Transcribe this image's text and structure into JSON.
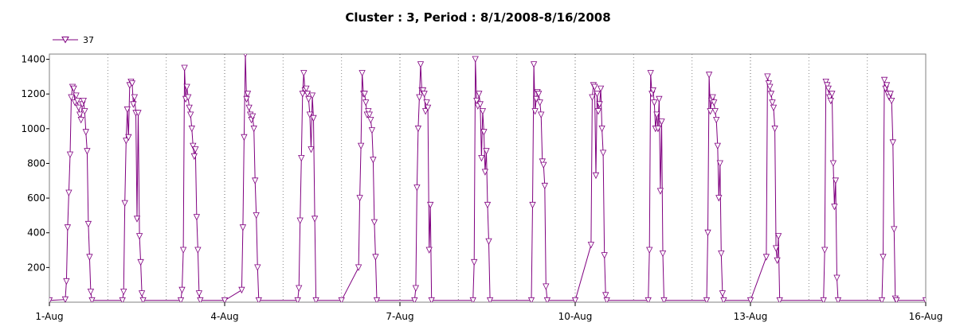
{
  "chart_data": {
    "type": "line",
    "title": "Cluster : 3, Period : 8/1/2008-8/16/2008",
    "xlabel": "",
    "ylabel": "",
    "x_range": [
      "2008-08-01",
      "2008-08-16"
    ],
    "ylim": [
      0,
      1430
    ],
    "x_ticks": [
      {
        "date": "2008-08-01",
        "label": "1-Aug"
      },
      {
        "date": "2008-08-04",
        "label": "4-Aug"
      },
      {
        "date": "2008-08-07",
        "label": "7-Aug"
      },
      {
        "date": "2008-08-10",
        "label": "10-Aug"
      },
      {
        "date": "2008-08-13",
        "label": "13-Aug"
      },
      {
        "date": "2008-08-16",
        "label": "16-Aug"
      }
    ],
    "minor_x_ticks": [
      "2008-08-02",
      "2008-08-03",
      "2008-08-05",
      "2008-08-06",
      "2008-08-08",
      "2008-08-09",
      "2008-08-11",
      "2008-08-12",
      "2008-08-14",
      "2008-08-15"
    ],
    "y_ticks": [
      200,
      400,
      600,
      800,
      1000,
      1200,
      1400
    ],
    "grid": "vertical dotted at day boundaries",
    "legend": {
      "placement": "top-left"
    },
    "series": [
      {
        "name": "37",
        "color": "#800080",
        "marker": "down-triangle",
        "points": [
          [
            "2008-08-01 00:00",
            10
          ],
          [
            "2008-08-01 06:30",
            15
          ],
          [
            "2008-08-01 07:00",
            120
          ],
          [
            "2008-08-01 07:30",
            430
          ],
          [
            "2008-08-01 08:00",
            630
          ],
          [
            "2008-08-01 08:30",
            850
          ],
          [
            "2008-08-01 09:00",
            1180
          ],
          [
            "2008-08-01 09:30",
            1240
          ],
          [
            "2008-08-01 10:00",
            1230
          ],
          [
            "2008-08-01 10:30",
            1150
          ],
          [
            "2008-08-01 11:00",
            1190
          ],
          [
            "2008-08-01 11:30",
            1160
          ],
          [
            "2008-08-01 12:00",
            1120
          ],
          [
            "2008-08-01 12:30",
            1080
          ],
          [
            "2008-08-01 13:00",
            1050
          ],
          [
            "2008-08-01 13:30",
            1140
          ],
          [
            "2008-08-01 14:00",
            1160
          ],
          [
            "2008-08-01 14:30",
            1100
          ],
          [
            "2008-08-01 15:00",
            980
          ],
          [
            "2008-08-01 15:30",
            870
          ],
          [
            "2008-08-01 16:00",
            450
          ],
          [
            "2008-08-01 16:30",
            260
          ],
          [
            "2008-08-01 17:00",
            60
          ],
          [
            "2008-08-01 17:30",
            10
          ],
          [
            "2008-08-02 06:00",
            10
          ],
          [
            "2008-08-02 06:30",
            60
          ],
          [
            "2008-08-02 07:00",
            570
          ],
          [
            "2008-08-02 07:30",
            930
          ],
          [
            "2008-08-02 08:00",
            1110
          ],
          [
            "2008-08-02 08:30",
            950
          ],
          [
            "2008-08-02 09:00",
            1250
          ],
          [
            "2008-08-02 09:30",
            1270
          ],
          [
            "2008-08-02 10:00",
            1260
          ],
          [
            "2008-08-02 10:30",
            1140
          ],
          [
            "2008-08-02 11:00",
            1180
          ],
          [
            "2008-08-02 11:30",
            1090
          ],
          [
            "2008-08-02 12:00",
            480
          ],
          [
            "2008-08-02 12:30",
            1090
          ],
          [
            "2008-08-02 13:00",
            380
          ],
          [
            "2008-08-02 13:30",
            230
          ],
          [
            "2008-08-02 14:00",
            50
          ],
          [
            "2008-08-02 14:30",
            10
          ],
          [
            "2008-08-03 06:00",
            10
          ],
          [
            "2008-08-03 06:30",
            70
          ],
          [
            "2008-08-03 07:00",
            300
          ],
          [
            "2008-08-03 07:30",
            1350
          ],
          [
            "2008-08-03 08:00",
            1170
          ],
          [
            "2008-08-03 08:30",
            1240
          ],
          [
            "2008-08-03 09:00",
            1180
          ],
          [
            "2008-08-03 09:30",
            1120
          ],
          [
            "2008-08-03 10:00",
            1080
          ],
          [
            "2008-08-03 10:30",
            1000
          ],
          [
            "2008-08-03 11:00",
            900
          ],
          [
            "2008-08-03 11:30",
            840
          ],
          [
            "2008-08-03 12:00",
            880
          ],
          [
            "2008-08-03 12:30",
            490
          ],
          [
            "2008-08-03 13:00",
            300
          ],
          [
            "2008-08-03 13:30",
            50
          ],
          [
            "2008-08-03 14:00",
            10
          ],
          [
            "2008-08-04 00:00",
            10
          ],
          [
            "2008-08-04 07:00",
            70
          ],
          [
            "2008-08-04 07:30",
            430
          ],
          [
            "2008-08-04 08:00",
            950
          ],
          [
            "2008-08-04 08:30",
            1430
          ],
          [
            "2008-08-04 09:00",
            1170
          ],
          [
            "2008-08-04 09:30",
            1200
          ],
          [
            "2008-08-04 10:00",
            1120
          ],
          [
            "2008-08-04 10:30",
            1080
          ],
          [
            "2008-08-04 11:00",
            1050
          ],
          [
            "2008-08-04 11:30",
            1070
          ],
          [
            "2008-08-04 12:00",
            1000
          ],
          [
            "2008-08-04 12:30",
            700
          ],
          [
            "2008-08-04 13:00",
            500
          ],
          [
            "2008-08-04 13:30",
            200
          ],
          [
            "2008-08-04 14:00",
            10
          ],
          [
            "2008-08-05 06:00",
            10
          ],
          [
            "2008-08-05 06:30",
            80
          ],
          [
            "2008-08-05 07:00",
            470
          ],
          [
            "2008-08-05 07:30",
            830
          ],
          [
            "2008-08-05 08:00",
            1200
          ],
          [
            "2008-08-05 08:30",
            1320
          ],
          [
            "2008-08-05 09:00",
            1220
          ],
          [
            "2008-08-05 09:30",
            1230
          ],
          [
            "2008-08-05 10:00",
            1200
          ],
          [
            "2008-08-05 10:30",
            1170
          ],
          [
            "2008-08-05 11:00",
            1080
          ],
          [
            "2008-08-05 11:30",
            880
          ],
          [
            "2008-08-05 12:00",
            1190
          ],
          [
            "2008-08-05 12:30",
            1060
          ],
          [
            "2008-08-05 13:00",
            480
          ],
          [
            "2008-08-05 13:30",
            10
          ],
          [
            "2008-08-06 00:00",
            10
          ],
          [
            "2008-08-06 07:00",
            200
          ],
          [
            "2008-08-06 07:30",
            600
          ],
          [
            "2008-08-06 08:00",
            900
          ],
          [
            "2008-08-06 08:30",
            1320
          ],
          [
            "2008-08-06 09:00",
            1200
          ],
          [
            "2008-08-06 09:30",
            1200
          ],
          [
            "2008-08-06 10:00",
            1150
          ],
          [
            "2008-08-06 10:30",
            1080
          ],
          [
            "2008-08-06 11:00",
            1100
          ],
          [
            "2008-08-06 11:30",
            1080
          ],
          [
            "2008-08-06 12:00",
            1050
          ],
          [
            "2008-08-06 12:30",
            990
          ],
          [
            "2008-08-06 13:00",
            820
          ],
          [
            "2008-08-06 13:30",
            460
          ],
          [
            "2008-08-06 14:00",
            260
          ],
          [
            "2008-08-06 14:30",
            10
          ],
          [
            "2008-08-07 06:00",
            10
          ],
          [
            "2008-08-07 06:30",
            80
          ],
          [
            "2008-08-07 07:00",
            660
          ],
          [
            "2008-08-07 07:30",
            1000
          ],
          [
            "2008-08-07 08:00",
            1180
          ],
          [
            "2008-08-07 08:30",
            1370
          ],
          [
            "2008-08-07 09:00",
            1220
          ],
          [
            "2008-08-07 09:30",
            1220
          ],
          [
            "2008-08-07 10:00",
            1200
          ],
          [
            "2008-08-07 10:30",
            1100
          ],
          [
            "2008-08-07 11:00",
            1150
          ],
          [
            "2008-08-07 11:30",
            1120
          ],
          [
            "2008-08-07 12:00",
            300
          ],
          [
            "2008-08-07 12:30",
            560
          ],
          [
            "2008-08-07 13:00",
            10
          ],
          [
            "2008-08-08 06:00",
            10
          ],
          [
            "2008-08-08 06:30",
            230
          ],
          [
            "2008-08-08 07:00",
            1400
          ],
          [
            "2008-08-08 07:30",
            1160
          ],
          [
            "2008-08-08 08:00",
            1130
          ],
          [
            "2008-08-08 08:30",
            1200
          ],
          [
            "2008-08-08 09:00",
            1140
          ],
          [
            "2008-08-08 09:30",
            830
          ],
          [
            "2008-08-08 10:00",
            1100
          ],
          [
            "2008-08-08 10:30",
            980
          ],
          [
            "2008-08-08 11:00",
            750
          ],
          [
            "2008-08-08 11:30",
            870
          ],
          [
            "2008-08-08 12:00",
            560
          ],
          [
            "2008-08-08 12:30",
            350
          ],
          [
            "2008-08-08 13:00",
            10
          ],
          [
            "2008-08-09 06:00",
            10
          ],
          [
            "2008-08-09 06:30",
            560
          ],
          [
            "2008-08-09 07:00",
            1370
          ],
          [
            "2008-08-09 07:30",
            1100
          ],
          [
            "2008-08-09 08:00",
            1170
          ],
          [
            "2008-08-09 08:30",
            1210
          ],
          [
            "2008-08-09 09:00",
            1200
          ],
          [
            "2008-08-09 09:30",
            1150
          ],
          [
            "2008-08-09 10:00",
            1080
          ],
          [
            "2008-08-09 10:30",
            810
          ],
          [
            "2008-08-09 11:00",
            790
          ],
          [
            "2008-08-09 11:30",
            670
          ],
          [
            "2008-08-09 12:00",
            90
          ],
          [
            "2008-08-09 12:30",
            10
          ],
          [
            "2008-08-10 00:00",
            10
          ],
          [
            "2008-08-10 06:30",
            330
          ],
          [
            "2008-08-10 07:00",
            1180
          ],
          [
            "2008-08-10 07:30",
            1250
          ],
          [
            "2008-08-10 08:00",
            1240
          ],
          [
            "2008-08-10 08:30",
            730
          ],
          [
            "2008-08-10 09:00",
            1200
          ],
          [
            "2008-08-10 09:30",
            1100
          ],
          [
            "2008-08-10 10:00",
            1140
          ],
          [
            "2008-08-10 10:30",
            1230
          ],
          [
            "2008-08-10 11:00",
            1000
          ],
          [
            "2008-08-10 11:30",
            860
          ],
          [
            "2008-08-10 12:00",
            270
          ],
          [
            "2008-08-10 12:30",
            40
          ],
          [
            "2008-08-10 13:00",
            10
          ],
          [
            "2008-08-11 06:00",
            10
          ],
          [
            "2008-08-11 06:30",
            300
          ],
          [
            "2008-08-11 07:00",
            1320
          ],
          [
            "2008-08-11 07:30",
            1200
          ],
          [
            "2008-08-11 08:00",
            1220
          ],
          [
            "2008-08-11 08:30",
            1150
          ],
          [
            "2008-08-11 09:00",
            1000
          ],
          [
            "2008-08-11 09:30",
            1080
          ],
          [
            "2008-08-11 10:00",
            1000
          ],
          [
            "2008-08-11 10:30",
            1170
          ],
          [
            "2008-08-11 11:00",
            640
          ],
          [
            "2008-08-11 11:30",
            1040
          ],
          [
            "2008-08-11 12:00",
            280
          ],
          [
            "2008-08-11 12:30",
            10
          ],
          [
            "2008-08-12 06:00",
            10
          ],
          [
            "2008-08-12 06:30",
            400
          ],
          [
            "2008-08-12 07:00",
            1310
          ],
          [
            "2008-08-12 07:30",
            1100
          ],
          [
            "2008-08-12 08:00",
            1160
          ],
          [
            "2008-08-12 08:30",
            1180
          ],
          [
            "2008-08-12 09:00",
            1150
          ],
          [
            "2008-08-12 09:30",
            1100
          ],
          [
            "2008-08-12 10:00",
            1050
          ],
          [
            "2008-08-12 10:30",
            900
          ],
          [
            "2008-08-12 11:00",
            600
          ],
          [
            "2008-08-12 11:30",
            800
          ],
          [
            "2008-08-12 12:00",
            280
          ],
          [
            "2008-08-12 12:30",
            50
          ],
          [
            "2008-08-12 13:00",
            10
          ],
          [
            "2008-08-13 00:00",
            10
          ],
          [
            "2008-08-13 06:30",
            260
          ],
          [
            "2008-08-13 07:00",
            1300
          ],
          [
            "2008-08-13 07:30",
            1260
          ],
          [
            "2008-08-13 08:00",
            1240
          ],
          [
            "2008-08-13 08:30",
            1200
          ],
          [
            "2008-08-13 09:00",
            1150
          ],
          [
            "2008-08-13 09:30",
            1120
          ],
          [
            "2008-08-13 10:00",
            1000
          ],
          [
            "2008-08-13 10:30",
            310
          ],
          [
            "2008-08-13 11:00",
            240
          ],
          [
            "2008-08-13 11:30",
            380
          ],
          [
            "2008-08-13 12:00",
            10
          ],
          [
            "2008-08-14 06:00",
            10
          ],
          [
            "2008-08-14 06:30",
            300
          ],
          [
            "2008-08-14 07:00",
            1270
          ],
          [
            "2008-08-14 07:30",
            1250
          ],
          [
            "2008-08-14 08:00",
            1230
          ],
          [
            "2008-08-14 08:30",
            1180
          ],
          [
            "2008-08-14 09:00",
            1160
          ],
          [
            "2008-08-14 09:30",
            1200
          ],
          [
            "2008-08-14 10:00",
            800
          ],
          [
            "2008-08-14 10:30",
            550
          ],
          [
            "2008-08-14 11:00",
            700
          ],
          [
            "2008-08-14 11:30",
            140
          ],
          [
            "2008-08-14 12:00",
            10
          ],
          [
            "2008-08-15 06:00",
            10
          ],
          [
            "2008-08-15 06:30",
            260
          ],
          [
            "2008-08-15 07:00",
            1280
          ],
          [
            "2008-08-15 07:30",
            1230
          ],
          [
            "2008-08-15 08:00",
            1250
          ],
          [
            "2008-08-15 08:30",
            1200
          ],
          [
            "2008-08-15 09:00",
            1180
          ],
          [
            "2008-08-15 09:30",
            1200
          ],
          [
            "2008-08-15 10:00",
            1160
          ],
          [
            "2008-08-15 10:30",
            920
          ],
          [
            "2008-08-15 11:00",
            420
          ],
          [
            "2008-08-15 11:30",
            20
          ],
          [
            "2008-08-15 12:00",
            10
          ],
          [
            "2008-08-16 00:00",
            10
          ]
        ]
      }
    ]
  }
}
